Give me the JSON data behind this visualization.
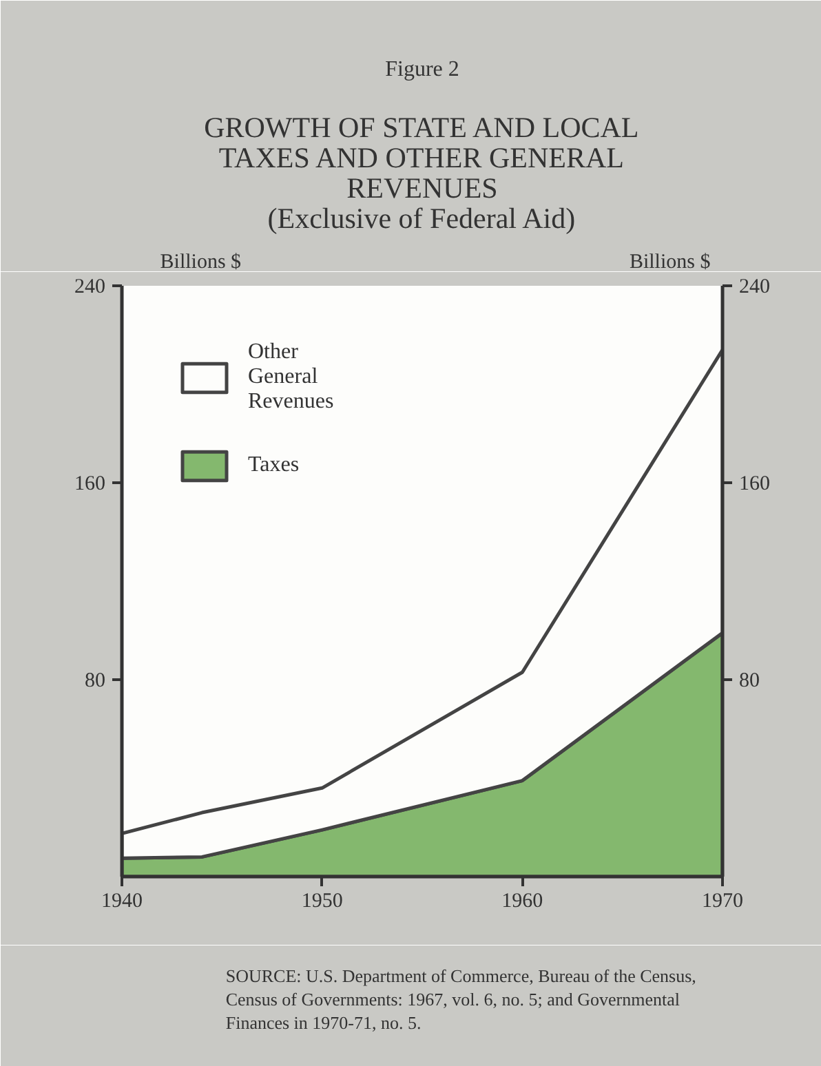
{
  "chart_data": {
    "type": "area",
    "stacked": true,
    "title": "GROWTH OF STATE AND LOCAL TAXES AND OTHER GENERAL REVENUES",
    "subtitle": "(Exclusive of Federal Aid)",
    "ylabel": "Billions $",
    "y2label": "Billions $",
    "x": [
      1940,
      1944,
      1950,
      1960,
      1970
    ],
    "series": [
      {
        "name": "Taxes",
        "color": "#84b86e",
        "values": [
          7.5,
          8,
          19,
          39,
          99
        ]
      },
      {
        "name": "Other General Revenues",
        "color": "#fdfdfb",
        "values": [
          10,
          18,
          17,
          44,
          115
        ]
      }
    ],
    "xlim": [
      1940,
      1970
    ],
    "xticks": [
      1940,
      1950,
      1960,
      1970
    ],
    "ylim": [
      0,
      240
    ],
    "yticks": [
      80,
      160,
      240
    ],
    "y2lim": [
      0,
      240
    ],
    "y2ticks": [
      80,
      160,
      240
    ],
    "grid": false,
    "legend": "top left",
    "annotations": [
      "Figure 2",
      "SOURCE: U.S. Department of Commerce, Bureau of the Census, Census of Governments: 1967, vol. 6, no. 5; and Governmental Finances in 1970-71, no. 5."
    ]
  }
}
